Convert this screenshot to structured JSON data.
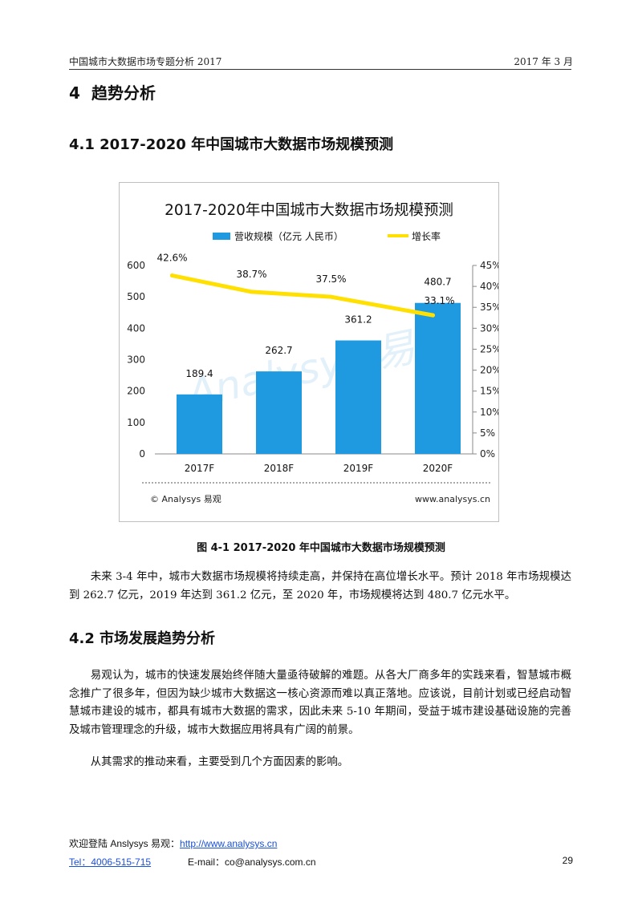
{
  "header": {
    "left": "中国城市大数据市场专题分析 2017",
    "right": "2017 年 3 月"
  },
  "section": {
    "number": "4",
    "title": "趋势分析"
  },
  "subsection1": {
    "title": "4.1 2017-2020 年中国城市大数据市场规模预测"
  },
  "chart_data": {
    "type": "bar",
    "title": "2017-2020年中国城市大数据市场规模预测",
    "categories": [
      "2017F",
      "2018F",
      "2019F",
      "2020F"
    ],
    "series": [
      {
        "name": "营收规模（亿元 人民币）",
        "type": "bar",
        "axis": "left",
        "color": "#1f9ae0",
        "values": [
          189.4,
          262.7,
          361.2,
          480.7
        ],
        "labels": [
          "189.4",
          "262.7",
          "361.2",
          "480.7"
        ]
      },
      {
        "name": "增长率",
        "type": "line",
        "axis": "right",
        "color": "#ffe000",
        "values": [
          42.6,
          38.7,
          37.5,
          33.1
        ],
        "labels": [
          "42.6%",
          "38.7%",
          "37.5%",
          "33.1%"
        ]
      }
    ],
    "y_left": {
      "min": 0,
      "max": 600,
      "ticks": [
        "0",
        "100",
        "200",
        "300",
        "400",
        "500",
        "600"
      ]
    },
    "y_right": {
      "min": 0,
      "max": 45,
      "ticks": [
        "0%",
        "5%",
        "10%",
        "15%",
        "20%",
        "25%",
        "30%",
        "35%",
        "40%",
        "45%"
      ]
    },
    "grid": false,
    "legend_position": "top",
    "source_left": "© Analysys 易观",
    "source_right": "www.analysys.cn",
    "watermark": "Analysys 易观"
  },
  "caption": "图  4-1 2017-2020 年中国城市大数据市场规模预测",
  "paragraph1": "未来 3-4 年中，城市大数据市场规模将持续走高，并保持在高位增长水平。预计 2018 年市场规模达到 262.7 亿元，2019 年达到 361.2 亿元，至 2020 年，市场规模将达到 480.7 亿元水平。",
  "subsection2": {
    "number": "4.2",
    "title": "市场发展趋势分析"
  },
  "paragraph2": "易观认为，城市的快速发展始终伴随大量亟待破解的难题。从各大厂商多年的实践来看，智慧城市概念推广了很多年，但因为缺少城市大数据这一核心资源而难以真正落地。应该说，目前计划或已经启动智慧城市建设的城市，都具有城市大数据的需求，因此未来 5-10 年期间，受益于城市建设基础设施的完善及城市管理理念的升级，城市大数据应用将具有广阔的前景。",
  "paragraph3": "从其需求的推动来看，主要受到几个方面因素的影响。",
  "footer": {
    "welcome": "欢迎登陆 Anslysys  易观：",
    "url": "http://www.analysys.cn",
    "tel": "Tel：4006-515-715",
    "email": "E-mail：co@analysys.com.cn",
    "page": "29"
  }
}
